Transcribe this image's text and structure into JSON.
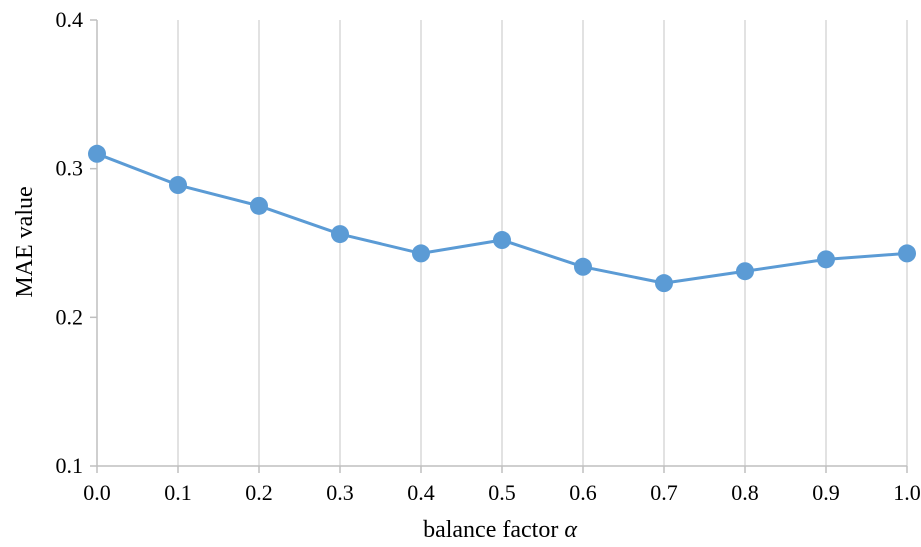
{
  "chart_data": {
    "type": "line",
    "title": "",
    "xlabel": "balance factor",
    "xlabel_symbol": "α",
    "ylabel": "MAE value",
    "x": [
      "0.0",
      "0.1",
      "0.2",
      "0.3",
      "0.4",
      "0.5",
      "0.6",
      "0.7",
      "0.8",
      "0.9",
      "1.0"
    ],
    "xlim": [
      0.0,
      1.0
    ],
    "ylim": [
      0.1,
      0.4
    ],
    "yticks": [
      "0.1",
      "0.2",
      "0.3",
      "0.4"
    ],
    "grid": "vertical",
    "legend": "none",
    "series": [
      {
        "values": [
          0.31,
          0.289,
          0.275,
          0.256,
          0.243,
          0.252,
          0.234,
          0.223,
          0.231,
          0.239,
          0.243
        ],
        "color": "#5B9BD5",
        "marker": "circle"
      }
    ],
    "colors": {
      "gridline": "#D9D9D9",
      "axis": "#BFBFBF"
    }
  }
}
